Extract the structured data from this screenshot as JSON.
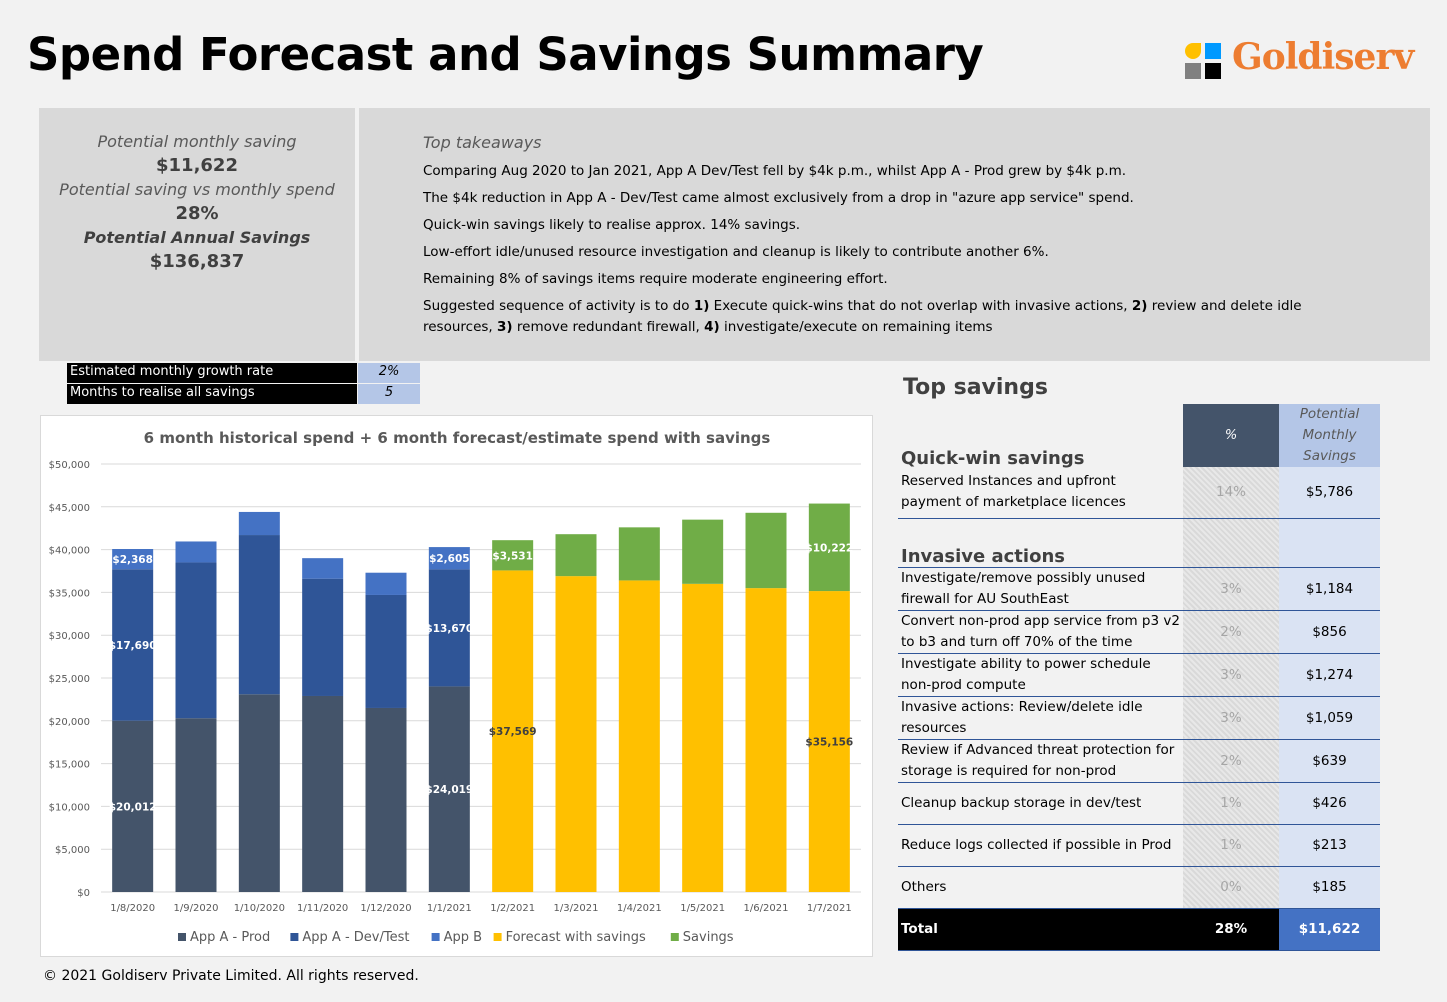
{
  "title": "Spend Forecast and Savings Summary",
  "logo": {
    "text": "Goldiserv",
    "colors": [
      "#ffc000",
      "#0099ff",
      "#808080",
      "#000000"
    ]
  },
  "kpi": {
    "monthly_label": "Potential monthly saving",
    "monthly_value": "$11,622",
    "pct_label": "Potential saving vs monthly spend",
    "pct_value": "28%",
    "annual_label": "Potential Annual Savings",
    "annual_value": "$136,837"
  },
  "takeaways": {
    "heading": "Top takeaways",
    "items": [
      "Comparing Aug 2020 to Jan 2021, App A Dev/Test fell by $4k p.m., whilst App A - Prod grew by $4k p.m.",
      "The $4k reduction in App A - Dev/Test came almost exclusively from a drop in \"azure app service\" spend.",
      "Quick-win savings likely to realise approx. 14% savings.",
      "Low-effort idle/unused resource investigation and cleanup is likely to contribute another 6%.",
      "Remaining 8% of savings items require moderate engineering effort."
    ],
    "sequence": [
      "Suggested sequence of activity is to do ",
      "1)",
      " Execute quick-wins that do not overlap with invasive actions, ",
      "2)",
      " review and delete idle resources, ",
      "3)",
      " remove redundant firewall, ",
      "4)",
      " investigate/execute on remaining items"
    ]
  },
  "params": [
    {
      "label": "Estimated monthly growth rate",
      "value": "2%"
    },
    {
      "label": "Months to realise all savings",
      "value": "5"
    }
  ],
  "chart_data": {
    "type": "bar",
    "stacked": true,
    "title": "6 month historical spend + 6 month forecast/estimate spend with savings",
    "categories": [
      "1/8/2020",
      "1/9/2020",
      "1/10/2020",
      "1/11/2020",
      "1/12/2020",
      "1/1/2021",
      "1/2/2021",
      "1/3/2021",
      "1/4/2021",
      "1/5/2021",
      "1/6/2021",
      "1/7/2021"
    ],
    "ylim": [
      0,
      50000
    ],
    "yticks": [
      "$0",
      "$5,000",
      "$10,000",
      "$15,000",
      "$20,000",
      "$25,000",
      "$30,000",
      "$35,000",
      "$40,000",
      "$45,000",
      "$50,000"
    ],
    "grid": true,
    "legend": "bottom",
    "series": [
      {
        "name": "App A - Prod",
        "color": "#44546a",
        "values": [
          20012,
          20300,
          23100,
          22900,
          21500,
          24019,
          0,
          0,
          0,
          0,
          0,
          0
        ],
        "labels": [
          "$20,012",
          null,
          null,
          null,
          null,
          "$24,019",
          null,
          null,
          null,
          null,
          null,
          null
        ]
      },
      {
        "name": "App A - Dev/Test",
        "color": "#2f5597",
        "values": [
          17690,
          18200,
          18600,
          13700,
          13200,
          13670,
          0,
          0,
          0,
          0,
          0,
          0
        ],
        "labels": [
          "$17,690",
          null,
          null,
          null,
          null,
          "$13,670",
          null,
          null,
          null,
          null,
          null,
          null
        ]
      },
      {
        "name": "App B",
        "color": "#4472c4",
        "values": [
          2368,
          2450,
          2700,
          2400,
          2600,
          2605,
          0,
          0,
          0,
          0,
          0,
          0
        ],
        "labels": [
          "$2,368",
          null,
          null,
          null,
          null,
          "$2,605",
          null,
          null,
          null,
          null,
          null,
          null
        ]
      },
      {
        "name": "Forecast with savings",
        "color": "#ffc000",
        "values": [
          0,
          0,
          0,
          0,
          0,
          0,
          37569,
          36900,
          36400,
          36000,
          35500,
          35156
        ],
        "labels": [
          null,
          null,
          null,
          null,
          null,
          null,
          "$37,569",
          null,
          null,
          null,
          null,
          "$35,156"
        ]
      },
      {
        "name": "Savings",
        "color": "#70ad47",
        "values": [
          0,
          0,
          0,
          0,
          0,
          0,
          3531,
          4900,
          6200,
          7500,
          8800,
          10222
        ],
        "labels": [
          null,
          null,
          null,
          null,
          null,
          null,
          "$3,531",
          null,
          null,
          null,
          null,
          "$10,222"
        ]
      }
    ]
  },
  "top_savings": {
    "title": "Top savings",
    "col_pct": "%",
    "col_savings": "Potential Monthly Savings",
    "quick_title": "Quick-win savings",
    "quick": [
      {
        "item": "Reserved Instances and upfront payment of marketplace licences",
        "pct": "14%",
        "value": "$5,786"
      }
    ],
    "invasive_title": "Invasive actions",
    "invasive": [
      {
        "item": "Investigate/remove possibly unused firewall for AU SouthEast",
        "pct": "3%",
        "value": "$1,184"
      },
      {
        "item": "Convert non-prod app service from p3 v2 to b3 and turn off 70% of the time",
        "pct": "2%",
        "value": "$856"
      },
      {
        "item": "Investigate ability to power schedule non-prod compute",
        "pct": "3%",
        "value": "$1,274"
      },
      {
        "item": "Invasive actions: Review/delete idle resources",
        "pct": "3%",
        "value": "$1,059"
      },
      {
        "item": "Review if Advanced threat protection for storage is required for non-prod",
        "pct": "2%",
        "value": "$639"
      },
      {
        "item": "Cleanup backup storage in dev/test",
        "pct": "1%",
        "value": "$426"
      },
      {
        "item": "Reduce logs collected if possible in Prod",
        "pct": "1%",
        "value": "$213"
      },
      {
        "item": "Others",
        "pct": "0%",
        "value": "$185"
      }
    ],
    "total": {
      "label": "Total",
      "pct": "28%",
      "value": "$11,622"
    }
  },
  "footer": "© 2021 Goldiserv Private Limited.  All rights reserved."
}
